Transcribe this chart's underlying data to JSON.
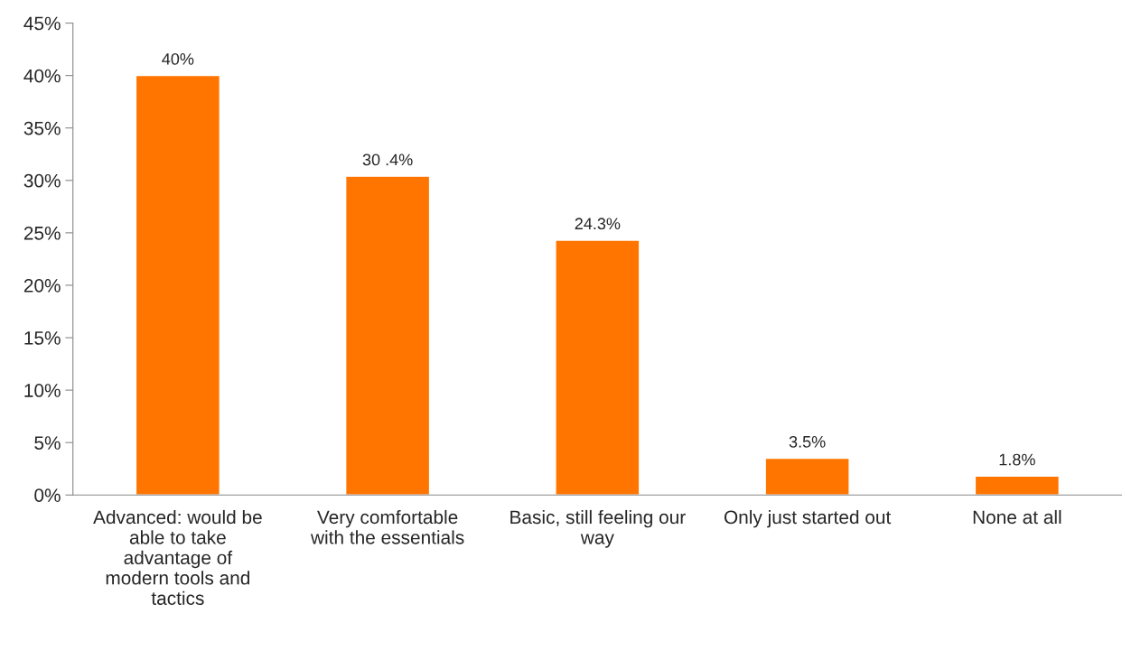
{
  "chart_data": {
    "type": "bar",
    "categories": [
      "Advanced: would be\nable to take\nadvantage of\nmodern tools and\ntactics",
      "Very comfortable\nwith the essentials",
      "Basic, still feeling our\nway",
      "Only just started out",
      "None at all"
    ],
    "values": [
      40,
      30.4,
      24.3,
      3.5,
      1.8
    ],
    "value_labels": [
      "40%",
      "30 .4%",
      "24.3%",
      "3.5%",
      "1.8%"
    ],
    "color": "#ff7500",
    "ylim": [
      0,
      45
    ],
    "yticks": [
      {
        "value": 0,
        "label": "0%"
      },
      {
        "value": 5,
        "label": "5%"
      },
      {
        "value": 10,
        "label": "10%"
      },
      {
        "value": 15,
        "label": "15%"
      },
      {
        "value": 20,
        "label": "20%"
      },
      {
        "value": 25,
        "label": "25%"
      },
      {
        "value": 30,
        "label": "30%"
      },
      {
        "value": 35,
        "label": "35%"
      },
      {
        "value": 40,
        "label": "40%"
      },
      {
        "value": 45,
        "label": "45%"
      }
    ]
  }
}
